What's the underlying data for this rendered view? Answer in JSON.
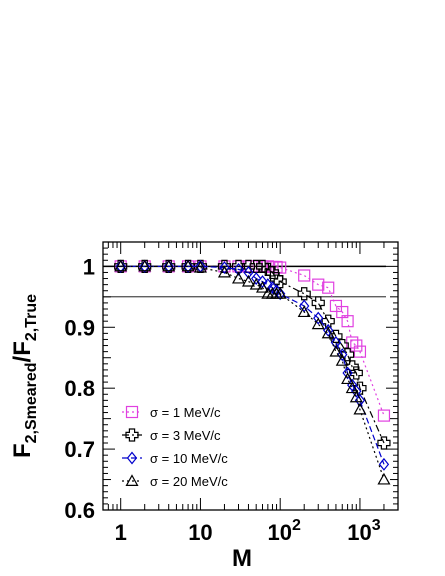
{
  "chart_data": {
    "type": "scatter",
    "x_scale": "log",
    "xlim": [
      0.6,
      3000
    ],
    "ylim": [
      0.6,
      1.04
    ],
    "x_ticks": [
      {
        "value": 1,
        "label": "1"
      },
      {
        "value": 10,
        "label": "10"
      },
      {
        "value": 100,
        "label": "10",
        "exp": "2"
      },
      {
        "value": 1000,
        "label": "10",
        "exp": "3"
      }
    ],
    "y_ticks": [
      {
        "value": 0.6,
        "label": "0.6"
      },
      {
        "value": 0.7,
        "label": "0.7"
      },
      {
        "value": 0.8,
        "label": "0.8"
      },
      {
        "value": 0.9,
        "label": "0.9"
      },
      {
        "value": 1.0,
        "label": "1"
      }
    ],
    "xlabel": "M",
    "ylabel": {
      "base1": "F",
      "sub1": "2,Smeared",
      "slash": "/",
      "base2": "F",
      "sub2": "2,True"
    },
    "reference_lines": [
      1.0,
      0.95
    ],
    "legend_position": "lower-left",
    "series": [
      {
        "name": "σ = 1 MeV/c",
        "color": "#e040e0",
        "marker": "square",
        "line": "dotted",
        "x": [
          1,
          2,
          4,
          7,
          10,
          20,
          30,
          40,
          50,
          60,
          70,
          80,
          90,
          100,
          200,
          300,
          400,
          500,
          600,
          700,
          800,
          900,
          1000,
          2000
        ],
        "y": [
          1.0,
          1.0,
          1.0,
          1.0,
          1.0,
          1.0,
          1.0,
          1.0,
          1.0,
          1.0,
          1.0,
          0.999,
          0.999,
          0.998,
          0.985,
          0.97,
          0.965,
          0.935,
          0.925,
          0.91,
          0.875,
          0.87,
          0.86,
          0.755
        ]
      },
      {
        "name": "σ = 3 MeV/c",
        "color": "#000000",
        "marker": "cross",
        "line": "dashdot",
        "x": [
          1,
          2,
          4,
          7,
          10,
          20,
          30,
          40,
          50,
          60,
          70,
          80,
          90,
          100,
          200,
          300,
          400,
          500,
          600,
          700,
          800,
          900,
          1000,
          2000
        ],
        "y": [
          1.0,
          1.0,
          1.0,
          1.0,
          1.0,
          1.0,
          1.0,
          1.0,
          1.0,
          1.0,
          0.995,
          0.99,
          0.98,
          0.975,
          0.955,
          0.94,
          0.91,
          0.885,
          0.87,
          0.855,
          0.835,
          0.825,
          0.8,
          0.71
        ]
      },
      {
        "name": "σ = 10 MeV/c",
        "color": "#0000cc",
        "marker": "diamond",
        "line": "dashed",
        "x": [
          1,
          2,
          4,
          7,
          10,
          20,
          30,
          40,
          50,
          60,
          70,
          80,
          90,
          100,
          200,
          300,
          400,
          500,
          600,
          700,
          800,
          900,
          1000,
          2000
        ],
        "y": [
          1.0,
          1.0,
          1.0,
          1.0,
          1.0,
          0.998,
          0.995,
          0.99,
          0.98,
          0.975,
          0.97,
          0.965,
          0.96,
          0.955,
          0.935,
          0.915,
          0.895,
          0.875,
          0.855,
          0.825,
          0.805,
          0.795,
          0.78,
          0.675
        ]
      },
      {
        "name": "σ = 20 MeV/c",
        "color": "#000000",
        "marker": "triangle",
        "line": "dotted",
        "x": [
          1,
          2,
          4,
          7,
          10,
          20,
          30,
          40,
          50,
          60,
          70,
          80,
          90,
          100,
          200,
          300,
          400,
          500,
          600,
          700,
          800,
          900,
          1000,
          2000
        ],
        "y": [
          1.0,
          1.0,
          1.0,
          1.0,
          0.998,
          0.99,
          0.98,
          0.975,
          0.97,
          0.965,
          0.955,
          0.955,
          0.955,
          0.955,
          0.925,
          0.905,
          0.89,
          0.86,
          0.845,
          0.815,
          0.8,
          0.785,
          0.765,
          0.65
        ]
      }
    ]
  }
}
